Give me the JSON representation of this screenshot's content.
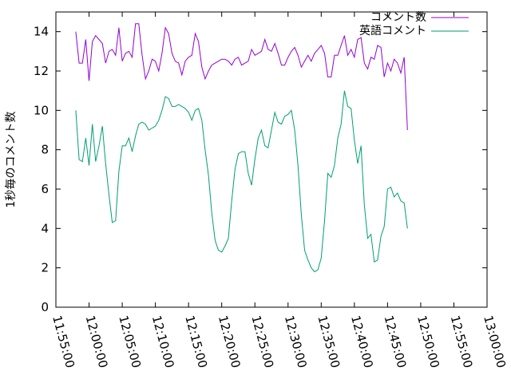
{
  "chart_data": {
    "type": "line",
    "ylabel": "1秒毎のコメント数",
    "xlim": [
      "11:55:00",
      "13:00:00"
    ],
    "ylim": [
      0,
      15
    ],
    "x_ticks": [
      "11:55:00",
      "12:00:00",
      "12:05:00",
      "12:10:00",
      "12:15:00",
      "12:20:00",
      "12:25:00",
      "12:30:00",
      "12:35:00",
      "12:40:00",
      "12:45:00",
      "12:50:00",
      "12:55:00",
      "13:00:00"
    ],
    "y_ticks": [
      0,
      2,
      4,
      6,
      8,
      10,
      12,
      14
    ],
    "grid": false,
    "legend_position": "top-right",
    "x_start": "11:58:00",
    "x_step_seconds": 30,
    "series": [
      {
        "name": "コメント数",
        "color": "#9400d3",
        "values": [
          14.0,
          12.4,
          12.4,
          13.6,
          11.5,
          13.5,
          13.8,
          13.6,
          13.4,
          12.4,
          13.0,
          13.1,
          12.8,
          14.2,
          12.5,
          12.9,
          13.0,
          12.7,
          14.4,
          14.4,
          12.8,
          11.6,
          12.0,
          12.6,
          12.5,
          12.0,
          12.9,
          14.2,
          13.9,
          12.9,
          12.5,
          12.4,
          11.8,
          12.5,
          12.7,
          12.8,
          13.9,
          13.5,
          12.2,
          11.6,
          12.0,
          12.3,
          12.4,
          12.5,
          12.6,
          12.6,
          12.5,
          12.3,
          12.6,
          12.7,
          12.3,
          12.4,
          12.5,
          13.1,
          12.8,
          12.9,
          13.0,
          13.6,
          13.1,
          13.0,
          13.4,
          12.9,
          12.3,
          12.3,
          12.7,
          13.0,
          13.2,
          12.8,
          12.2,
          12.5,
          12.8,
          12.5,
          12.9,
          13.1,
          13.3,
          12.9,
          11.7,
          11.7,
          12.8,
          12.8,
          13.3,
          13.8,
          12.8,
          13.1,
          12.7,
          13.6,
          13.7,
          12.4,
          12.1,
          12.7,
          12.6,
          13.3,
          13.2,
          11.7,
          12.4,
          12.0,
          12.6,
          12.4,
          11.9,
          12.7,
          9.0
        ]
      },
      {
        "name": "英語コメント",
        "color": "#009e73",
        "values": [
          10.0,
          7.5,
          7.4,
          8.6,
          7.2,
          9.3,
          7.4,
          8.2,
          9.2,
          7.3,
          5.7,
          4.3,
          4.4,
          6.9,
          8.2,
          8.2,
          8.6,
          7.9,
          8.7,
          9.3,
          9.4,
          9.3,
          9.0,
          9.1,
          9.2,
          9.5,
          10.0,
          10.7,
          10.6,
          10.2,
          10.2,
          10.3,
          10.2,
          10.1,
          9.9,
          9.5,
          10.0,
          10.1,
          9.5,
          8.0,
          6.7,
          4.8,
          3.4,
          2.9,
          2.8,
          3.1,
          3.5,
          5.4,
          7.0,
          7.8,
          7.9,
          7.9,
          6.8,
          6.2,
          7.5,
          8.6,
          9.0,
          8.2,
          8.1,
          9.0,
          9.9,
          9.4,
          9.3,
          9.7,
          9.8,
          10.0,
          9.0,
          7.2,
          4.7,
          2.9,
          2.4,
          2.0,
          1.8,
          1.9,
          2.5,
          4.4,
          6.8,
          6.6,
          7.2,
          8.6,
          9.3,
          11.0,
          10.2,
          10.1,
          8.5,
          7.3,
          8.2,
          5.2,
          3.5,
          3.7,
          2.3,
          2.4,
          3.6,
          4.1,
          6.0,
          6.1,
          5.6,
          5.8,
          5.4,
          5.3,
          4.0
        ]
      }
    ]
  }
}
